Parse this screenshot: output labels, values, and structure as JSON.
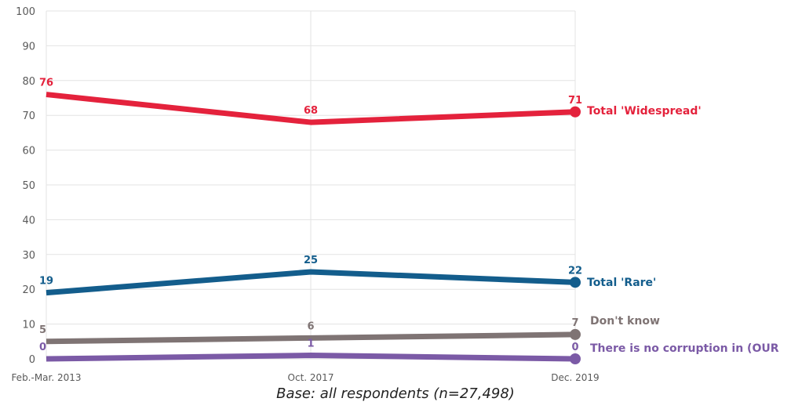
{
  "chart_data": {
    "type": "line",
    "title": "",
    "xlabel": "",
    "ylabel": "",
    "categories": [
      "Feb.-Mar. 2013",
      "Oct. 2017",
      "Dec. 2019"
    ],
    "ylim": [
      0,
      100
    ],
    "yticks": [
      0,
      10,
      20,
      30,
      40,
      50,
      60,
      70,
      80,
      90,
      100
    ],
    "grid": true,
    "legend": "none (series labels at line ends)",
    "series": [
      {
        "name": "Total 'Widespread'",
        "values": [
          76,
          68,
          71
        ],
        "color": "#e4223c"
      },
      {
        "name": "Total 'Rare'",
        "values": [
          19,
          25,
          22
        ],
        "color": "#135d8c"
      },
      {
        "name": "Don't know",
        "values": [
          5,
          6,
          7
        ],
        "color": "#7f7474"
      },
      {
        "name": "There is no corruption in (OUR",
        "values": [
          0,
          1,
          0
        ],
        "color": "#7b5aa6"
      }
    ]
  },
  "note": "Base: all respondents (n=27,498)"
}
